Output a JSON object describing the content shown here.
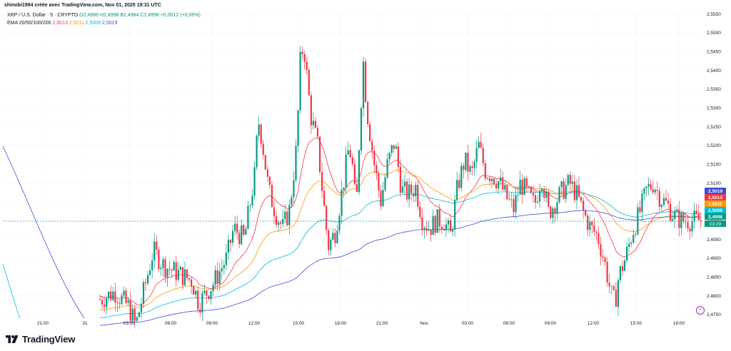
{
  "header": {
    "publish_line": "shinobi1994 créée avec TradingView.com, Nov 01, 2025 19:31 UTC"
  },
  "legend": {
    "symbol": "XRP / U.S. Dollar · 5 · CRYPTO",
    "ohlc": "O2,4986 H2,4998 B2,4984 C2,4998 +0,0012 (+0,05%)",
    "ema_label": "EMA 20/50/100/200",
    "ema_values": [
      "2,5013",
      "2,5011",
      "2,5009",
      "2,5019"
    ]
  },
  "brand": {
    "name": "TradingView",
    "icon": "tradingview-logo-icon"
  },
  "flash_icon": "lightning-icon",
  "colors": {
    "up": "#089981",
    "down": "#f23645",
    "ema20": "#f23645",
    "ema50": "#ff9800",
    "ema100": "#00bcd4",
    "ema200": "#3f4bd6",
    "grid": "#f0f3fa"
  },
  "chart_data": {
    "type": "candlestick",
    "instrument": "XRP / U.S. Dollar",
    "interval": "5",
    "y_ticks": [
      "2,5550",
      "2,5500",
      "2,5450",
      "2,5400",
      "2,5350",
      "2,5300",
      "2,5250",
      "2,5200",
      "2,5150",
      "2,5100",
      "2,5050",
      "2,5000",
      "2,4950",
      "2,4900",
      "2,4850",
      "2,4800",
      "2,4750"
    ],
    "ylim": [
      2.474,
      2.556
    ],
    "x_ticks": [
      "21:00",
      "31",
      "03:00",
      "06:00",
      "09:00",
      "12:00",
      "15:00",
      "18:00",
      "21:00",
      "Nov",
      "03:00",
      "06:00",
      "09:00",
      "12:00",
      "15:00",
      "18:00"
    ],
    "price_labels": [
      {
        "value": "2,5019",
        "series": "EMA 200"
      },
      {
        "value": "2,5013",
        "series": "EMA 20"
      },
      {
        "value": "2,5011",
        "series": "EMA 50"
      },
      {
        "value": "2,5009",
        "series": "EMA 100"
      },
      {
        "value": "2,4998",
        "series": "last"
      }
    ],
    "countdown": "03:29",
    "last_price": 2.4998,
    "price_path": [
      [
        0.0,
        2.47
      ],
      [
        0.05,
        2.473
      ],
      [
        0.1,
        2.476
      ],
      [
        0.14,
        2.479
      ],
      [
        0.16,
        2.481
      ],
      [
        0.18,
        2.477
      ],
      [
        0.19,
        2.472
      ],
      [
        0.2,
        2.48
      ],
      [
        0.215,
        2.492
      ],
      [
        0.23,
        2.488
      ],
      [
        0.25,
        2.486
      ],
      [
        0.27,
        2.484
      ],
      [
        0.28,
        2.478
      ],
      [
        0.3,
        2.483
      ],
      [
        0.32,
        2.49
      ],
      [
        0.33,
        2.498
      ],
      [
        0.345,
        2.495
      ],
      [
        0.36,
        2.512
      ],
      [
        0.365,
        2.527
      ],
      [
        0.37,
        2.522
      ],
      [
        0.38,
        2.508
      ],
      [
        0.39,
        2.502
      ],
      [
        0.4,
        2.498
      ],
      [
        0.41,
        2.503
      ],
      [
        0.42,
        2.52
      ],
      [
        0.425,
        2.542
      ],
      [
        0.43,
        2.547
      ],
      [
        0.44,
        2.528
      ],
      [
        0.45,
        2.52
      ],
      [
        0.46,
        2.502
      ],
      [
        0.465,
        2.493
      ],
      [
        0.475,
        2.497
      ],
      [
        0.485,
        2.508
      ],
      [
        0.495,
        2.52
      ],
      [
        0.5,
        2.514
      ],
      [
        0.505,
        2.502
      ],
      [
        0.51,
        2.524
      ],
      [
        0.515,
        2.543
      ],
      [
        0.52,
        2.53
      ],
      [
        0.53,
        2.516
      ],
      [
        0.54,
        2.505
      ],
      [
        0.55,
        2.515
      ],
      [
        0.56,
        2.521
      ],
      [
        0.57,
        2.508
      ],
      [
        0.58,
        2.507
      ],
      [
        0.59,
        2.509
      ],
      [
        0.6,
        2.5
      ],
      [
        0.61,
        2.498
      ],
      [
        0.62,
        2.5
      ],
      [
        0.63,
        2.5
      ],
      [
        0.64,
        2.496
      ],
      [
        0.65,
        2.509
      ],
      [
        0.66,
        2.516
      ],
      [
        0.67,
        2.512
      ],
      [
        0.68,
        2.52
      ],
      [
        0.69,
        2.513
      ],
      [
        0.7,
        2.512
      ],
      [
        0.71,
        2.51
      ],
      [
        0.72,
        2.506
      ],
      [
        0.73,
        2.503
      ],
      [
        0.74,
        2.51
      ],
      [
        0.75,
        2.507
      ],
      [
        0.76,
        2.504
      ],
      [
        0.77,
        2.512
      ],
      [
        0.78,
        2.502
      ],
      [
        0.79,
        2.505
      ],
      [
        0.8,
        2.508
      ],
      [
        0.81,
        2.51
      ],
      [
        0.82,
        2.507
      ],
      [
        0.83,
        2.502
      ],
      [
        0.84,
        2.498
      ],
      [
        0.85,
        2.496
      ],
      [
        0.86,
        2.489
      ],
      [
        0.87,
        2.48
      ],
      [
        0.875,
        2.478
      ],
      [
        0.88,
        2.485
      ],
      [
        0.89,
        2.49
      ],
      [
        0.9,
        2.497
      ],
      [
        0.91,
        2.502
      ],
      [
        0.92,
        2.508
      ],
      [
        0.93,
        2.51
      ],
      [
        0.94,
        2.506
      ],
      [
        0.95,
        2.504
      ],
      [
        0.96,
        2.501
      ],
      [
        0.97,
        2.5
      ],
      [
        0.98,
        2.5
      ]
    ]
  }
}
